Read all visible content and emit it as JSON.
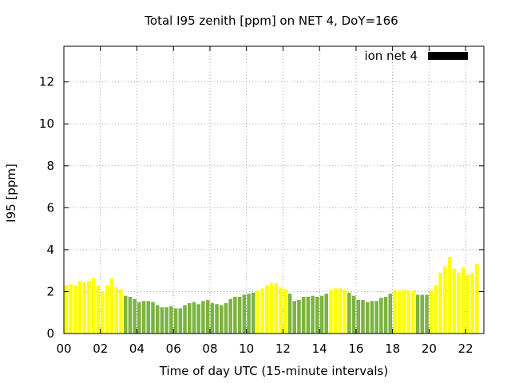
{
  "chart_data": {
    "type": "bar",
    "title": "Total I95 zenith [ppm] on NET 4, DoY=166",
    "xlabel": "Time of day UTC (15-minute intervals)",
    "ylabel": "I95 [ppm]",
    "xlim": [
      0,
      23
    ],
    "ylim": [
      0,
      13.7
    ],
    "xticks": [
      "00",
      "02",
      "04",
      "06",
      "08",
      "10",
      "12",
      "14",
      "16",
      "18",
      "20",
      "22"
    ],
    "yticks": [
      "0",
      "2",
      "4",
      "6",
      "8",
      "10",
      "12"
    ],
    "grid": true,
    "legend": {
      "position": "top-right",
      "entries": [
        {
          "label": "ion net 4",
          "color": "#000000"
        }
      ]
    },
    "colors": {
      "yellow": "#ffff00",
      "green": "#7cb342"
    },
    "bar_width_hours": 0.2,
    "bars": [
      {
        "x": 0.125,
        "value": 2.3,
        "color": "yellow"
      },
      {
        "x": 0.375,
        "value": 2.35,
        "color": "yellow"
      },
      {
        "x": 0.625,
        "value": 2.3,
        "color": "yellow"
      },
      {
        "x": 0.875,
        "value": 2.5,
        "color": "yellow"
      },
      {
        "x": 1.125,
        "value": 2.45,
        "color": "yellow"
      },
      {
        "x": 1.375,
        "value": 2.5,
        "color": "yellow"
      },
      {
        "x": 1.625,
        "value": 2.65,
        "color": "yellow"
      },
      {
        "x": 1.875,
        "value": 2.3,
        "color": "yellow"
      },
      {
        "x": 2.125,
        "value": 2.0,
        "color": "yellow"
      },
      {
        "x": 2.375,
        "value": 2.3,
        "color": "yellow"
      },
      {
        "x": 2.625,
        "value": 2.65,
        "color": "yellow"
      },
      {
        "x": 2.875,
        "value": 2.2,
        "color": "yellow"
      },
      {
        "x": 3.125,
        "value": 2.1,
        "color": "yellow"
      },
      {
        "x": 3.375,
        "value": 1.8,
        "color": "green"
      },
      {
        "x": 3.625,
        "value": 1.75,
        "color": "green"
      },
      {
        "x": 3.875,
        "value": 1.65,
        "color": "green"
      },
      {
        "x": 4.125,
        "value": 1.5,
        "color": "green"
      },
      {
        "x": 4.375,
        "value": 1.55,
        "color": "green"
      },
      {
        "x": 4.625,
        "value": 1.55,
        "color": "green"
      },
      {
        "x": 4.875,
        "value": 1.5,
        "color": "green"
      },
      {
        "x": 5.125,
        "value": 1.35,
        "color": "green"
      },
      {
        "x": 5.375,
        "value": 1.25,
        "color": "green"
      },
      {
        "x": 5.625,
        "value": 1.25,
        "color": "green"
      },
      {
        "x": 5.875,
        "value": 1.3,
        "color": "green"
      },
      {
        "x": 6.125,
        "value": 1.2,
        "color": "green"
      },
      {
        "x": 6.375,
        "value": 1.2,
        "color": "green"
      },
      {
        "x": 6.625,
        "value": 1.35,
        "color": "green"
      },
      {
        "x": 6.875,
        "value": 1.45,
        "color": "green"
      },
      {
        "x": 7.125,
        "value": 1.5,
        "color": "green"
      },
      {
        "x": 7.375,
        "value": 1.4,
        "color": "green"
      },
      {
        "x": 7.625,
        "value": 1.55,
        "color": "green"
      },
      {
        "x": 7.875,
        "value": 1.6,
        "color": "green"
      },
      {
        "x": 8.125,
        "value": 1.45,
        "color": "green"
      },
      {
        "x": 8.375,
        "value": 1.4,
        "color": "green"
      },
      {
        "x": 8.625,
        "value": 1.35,
        "color": "green"
      },
      {
        "x": 8.875,
        "value": 1.45,
        "color": "green"
      },
      {
        "x": 9.125,
        "value": 1.65,
        "color": "green"
      },
      {
        "x": 9.375,
        "value": 1.75,
        "color": "green"
      },
      {
        "x": 9.625,
        "value": 1.75,
        "color": "green"
      },
      {
        "x": 9.875,
        "value": 1.85,
        "color": "green"
      },
      {
        "x": 10.125,
        "value": 1.9,
        "color": "green"
      },
      {
        "x": 10.375,
        "value": 1.95,
        "color": "green"
      },
      {
        "x": 10.625,
        "value": 2.05,
        "color": "yellow"
      },
      {
        "x": 10.875,
        "value": 2.15,
        "color": "yellow"
      },
      {
        "x": 11.125,
        "value": 2.3,
        "color": "yellow"
      },
      {
        "x": 11.375,
        "value": 2.4,
        "color": "yellow"
      },
      {
        "x": 11.625,
        "value": 2.4,
        "color": "yellow"
      },
      {
        "x": 11.875,
        "value": 2.2,
        "color": "yellow"
      },
      {
        "x": 12.125,
        "value": 2.1,
        "color": "yellow"
      },
      {
        "x": 12.375,
        "value": 1.9,
        "color": "green"
      },
      {
        "x": 12.625,
        "value": 1.55,
        "color": "green"
      },
      {
        "x": 12.875,
        "value": 1.6,
        "color": "green"
      },
      {
        "x": 13.125,
        "value": 1.75,
        "color": "green"
      },
      {
        "x": 13.375,
        "value": 1.75,
        "color": "green"
      },
      {
        "x": 13.625,
        "value": 1.8,
        "color": "green"
      },
      {
        "x": 13.875,
        "value": 1.75,
        "color": "green"
      },
      {
        "x": 14.125,
        "value": 1.8,
        "color": "green"
      },
      {
        "x": 14.375,
        "value": 1.9,
        "color": "green"
      },
      {
        "x": 14.625,
        "value": 2.1,
        "color": "yellow"
      },
      {
        "x": 14.875,
        "value": 2.15,
        "color": "yellow"
      },
      {
        "x": 15.125,
        "value": 2.15,
        "color": "yellow"
      },
      {
        "x": 15.375,
        "value": 2.1,
        "color": "yellow"
      },
      {
        "x": 15.625,
        "value": 1.95,
        "color": "green"
      },
      {
        "x": 15.875,
        "value": 1.8,
        "color": "green"
      },
      {
        "x": 16.125,
        "value": 1.6,
        "color": "green"
      },
      {
        "x": 16.375,
        "value": 1.6,
        "color": "green"
      },
      {
        "x": 16.625,
        "value": 1.5,
        "color": "green"
      },
      {
        "x": 16.875,
        "value": 1.55,
        "color": "green"
      },
      {
        "x": 17.125,
        "value": 1.55,
        "color": "green"
      },
      {
        "x": 17.375,
        "value": 1.7,
        "color": "green"
      },
      {
        "x": 17.625,
        "value": 1.75,
        "color": "green"
      },
      {
        "x": 17.875,
        "value": 1.9,
        "color": "green"
      },
      {
        "x": 18.125,
        "value": 2.05,
        "color": "yellow"
      },
      {
        "x": 18.375,
        "value": 2.05,
        "color": "yellow"
      },
      {
        "x": 18.625,
        "value": 2.1,
        "color": "yellow"
      },
      {
        "x": 18.875,
        "value": 2.05,
        "color": "yellow"
      },
      {
        "x": 19.125,
        "value": 2.05,
        "color": "yellow"
      },
      {
        "x": 19.375,
        "value": 1.85,
        "color": "green"
      },
      {
        "x": 19.625,
        "value": 1.85,
        "color": "green"
      },
      {
        "x": 19.875,
        "value": 1.85,
        "color": "green"
      },
      {
        "x": 20.125,
        "value": 2.05,
        "color": "yellow"
      },
      {
        "x": 20.375,
        "value": 2.3,
        "color": "yellow"
      },
      {
        "x": 20.625,
        "value": 2.9,
        "color": "yellow"
      },
      {
        "x": 20.875,
        "value": 3.2,
        "color": "yellow"
      },
      {
        "x": 21.125,
        "value": 3.65,
        "color": "yellow"
      },
      {
        "x": 21.375,
        "value": 3.1,
        "color": "yellow"
      },
      {
        "x": 21.625,
        "value": 2.9,
        "color": "yellow"
      },
      {
        "x": 21.875,
        "value": 3.15,
        "color": "yellow"
      },
      {
        "x": 22.125,
        "value": 2.8,
        "color": "yellow"
      },
      {
        "x": 22.375,
        "value": 2.9,
        "color": "yellow"
      },
      {
        "x": 22.625,
        "value": 3.3,
        "color": "yellow"
      }
    ]
  }
}
